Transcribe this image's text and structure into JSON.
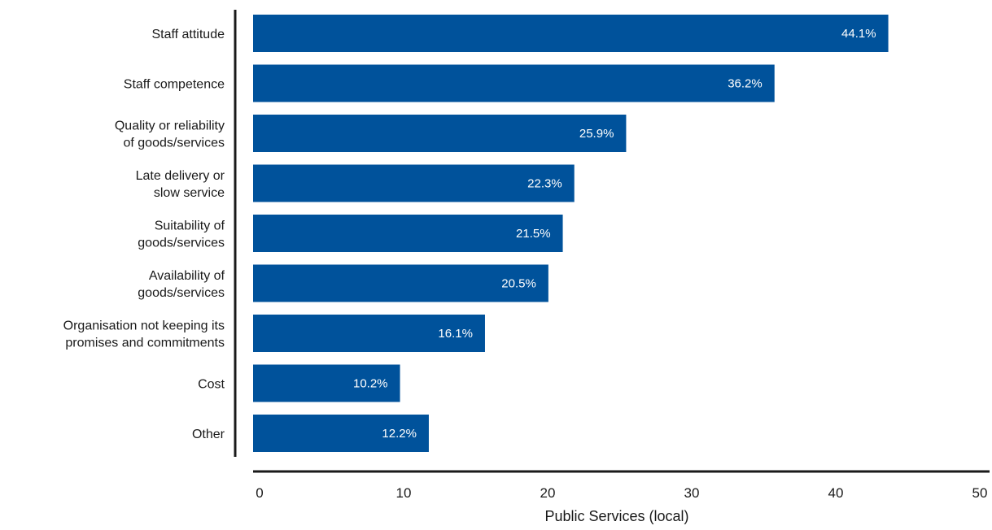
{
  "chart_data": {
    "type": "bar",
    "orientation": "horizontal",
    "categories": [
      [
        "Staff attitude"
      ],
      [
        "Staff competence"
      ],
      [
        "Quality or reliability",
        "of goods/services"
      ],
      [
        "Late delivery or",
        "slow service"
      ],
      [
        "Suitability of",
        "goods/services"
      ],
      [
        "Availability of",
        "goods/services"
      ],
      [
        "Organisation not keeping its",
        "promises and commitments"
      ],
      [
        "Cost"
      ],
      [
        "Other"
      ]
    ],
    "values": [
      44.1,
      36.2,
      25.9,
      22.3,
      21.5,
      20.5,
      16.1,
      10.2,
      12.2
    ],
    "value_labels": [
      "44.1%",
      "36.2%",
      "25.9%",
      "22.3%",
      "21.5%",
      "20.5%",
      "16.1%",
      "10.2%",
      "12.2%"
    ],
    "xlabel": "Public Services (local)",
    "ylabel": "",
    "xlim": [
      0,
      50
    ],
    "xticks": [
      "0",
      "10",
      "20",
      "30",
      "40",
      "50"
    ],
    "grid": false,
    "colors": {
      "bar": "#00529b",
      "axis": "#1a1a1a"
    }
  }
}
